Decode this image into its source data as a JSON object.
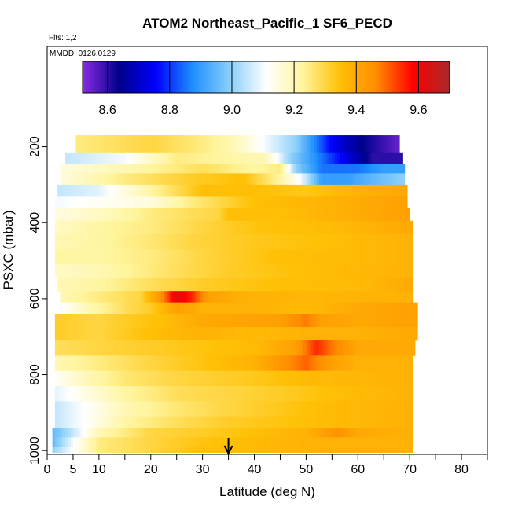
{
  "chart_data": {
    "type": "heatmap",
    "title": "ATOM2 Northeast_Pacific_1 SF6_PECD",
    "flights_label": "Flts: 1,2",
    "dates_label": "MMDD: 0126,0129",
    "xlabel": "Latitude (deg N)",
    "ylabel": "PSXC (mbar)",
    "xlim": [
      0,
      85
    ],
    "ylim": [
      1000,
      0
    ],
    "x_ticks": [
      0,
      5,
      10,
      15,
      20,
      25,
      30,
      35,
      40,
      45,
      50,
      55,
      60,
      65,
      70,
      75,
      80,
      85
    ],
    "x_tick_labels": [
      "0",
      "5",
      "10",
      "",
      "20",
      "",
      "30",
      "",
      "40",
      "",
      "50",
      "",
      "60",
      "",
      "70",
      "",
      "80",
      ""
    ],
    "y_ticks": [
      200,
      400,
      600,
      800,
      1000
    ],
    "y_tick_labels": [
      "200",
      "400",
      "600",
      "800",
      "1000"
    ],
    "colorbar": {
      "range": [
        8.52,
        9.7
      ],
      "ticks": [
        8.6,
        8.8,
        9.0,
        9.2,
        9.4,
        9.6
      ],
      "tick_labels": [
        "8.6",
        "8.8",
        "9.0",
        "9.2",
        "9.4",
        "9.6"
      ],
      "colors": [
        "#8a2be2",
        "#00008b",
        "#0000ff",
        "#1e90ff",
        "#87cefa",
        "#ffffff",
        "#fff59d",
        "#ffc107",
        "#ff8c00",
        "#ff0000",
        "#a52a2a"
      ]
    },
    "marker": {
      "type": "arrow",
      "latitude": 35,
      "label": "↓"
    },
    "rows": [
      {
        "p": [
          170,
          215
        ],
        "lat": [
          5.5,
          68
        ],
        "nodes": [
          [
            5.5,
            9.25
          ],
          [
            20,
            9.3
          ],
          [
            30,
            9.25
          ],
          [
            36,
            9.2
          ],
          [
            42,
            9.1
          ],
          [
            48,
            9.0
          ],
          [
            55,
            8.75
          ],
          [
            60,
            8.65
          ],
          [
            64,
            8.6
          ],
          [
            68,
            8.55
          ]
        ]
      },
      {
        "p": [
          215,
          245
        ],
        "lat": [
          3.5,
          68.5
        ],
        "nodes": [
          [
            3.5,
            9.05
          ],
          [
            15,
            9.1
          ],
          [
            25,
            9.25
          ],
          [
            35,
            9.22
          ],
          [
            42,
            9.2
          ],
          [
            47,
            9.0
          ],
          [
            53,
            8.85
          ],
          [
            59,
            8.7
          ],
          [
            63,
            8.6
          ],
          [
            68.5,
            8.6
          ]
        ]
      },
      {
        "p": [
          245,
          270
        ],
        "lat": [
          2.5,
          69
        ],
        "nodes": [
          [
            2.5,
            9.15
          ],
          [
            15,
            9.2
          ],
          [
            30,
            9.28
          ],
          [
            40,
            9.22
          ],
          [
            45,
            9.25
          ],
          [
            48,
            9.0
          ],
          [
            53,
            8.85
          ],
          [
            60,
            8.85
          ],
          [
            65,
            8.9
          ],
          [
            69,
            8.9
          ]
        ]
      },
      {
        "p": [
          270,
          300
        ],
        "lat": [
          2.5,
          69
        ],
        "nodes": [
          [
            2.5,
            9.15
          ],
          [
            15,
            9.25
          ],
          [
            28,
            9.32
          ],
          [
            38,
            9.35
          ],
          [
            45,
            9.22
          ],
          [
            49,
            9.1
          ],
          [
            53,
            8.9
          ],
          [
            58,
            8.9
          ],
          [
            63,
            8.95
          ],
          [
            69,
            9.0
          ]
        ]
      },
      {
        "p": [
          300,
          330
        ],
        "lat": [
          2,
          69.5
        ],
        "nodes": [
          [
            2,
            9.05
          ],
          [
            10,
            9.08
          ],
          [
            20,
            9.22
          ],
          [
            30,
            9.35
          ],
          [
            40,
            9.35
          ],
          [
            50,
            9.33
          ],
          [
            60,
            9.38
          ],
          [
            69.5,
            9.4
          ]
        ]
      },
      {
        "p": [
          330,
          360
        ],
        "lat": [
          1.5,
          69.5
        ],
        "nodes": [
          [
            1.5,
            9.1
          ],
          [
            10,
            9.12
          ],
          [
            20,
            9.15
          ],
          [
            28,
            9.25
          ],
          [
            34,
            9.3
          ],
          [
            40,
            9.35
          ],
          [
            55,
            9.38
          ],
          [
            69.5,
            9.42
          ]
        ]
      },
      {
        "p": [
          360,
          395
        ],
        "lat": [
          1.5,
          70
        ],
        "nodes": [
          [
            1.5,
            9.15
          ],
          [
            10,
            9.18
          ],
          [
            20,
            9.25
          ],
          [
            33,
            9.3
          ],
          [
            35,
            9.35
          ],
          [
            45,
            9.35
          ],
          [
            55,
            9.38
          ],
          [
            70,
            9.42
          ]
        ]
      },
      {
        "p": [
          395,
          430
        ],
        "lat": [
          1.5,
          70.5
        ],
        "nodes": [
          [
            1.5,
            9.18
          ],
          [
            10,
            9.22
          ],
          [
            20,
            9.25
          ],
          [
            30,
            9.3
          ],
          [
            40,
            9.34
          ],
          [
            55,
            9.36
          ],
          [
            70.5,
            9.4
          ]
        ]
      },
      {
        "p": [
          430,
          470
        ],
        "lat": [
          1.5,
          70.5
        ],
        "nodes": [
          [
            1.5,
            9.2
          ],
          [
            10,
            9.22
          ],
          [
            20,
            9.26
          ],
          [
            28,
            9.3
          ],
          [
            40,
            9.33
          ],
          [
            55,
            9.35
          ],
          [
            70.5,
            9.38
          ]
        ]
      },
      {
        "p": [
          470,
          510
        ],
        "lat": [
          1.5,
          70.5
        ],
        "nodes": [
          [
            1.5,
            9.22
          ],
          [
            10,
            9.22
          ],
          [
            20,
            9.25
          ],
          [
            30,
            9.3
          ],
          [
            45,
            9.35
          ],
          [
            60,
            9.36
          ],
          [
            70.5,
            9.38
          ]
        ]
      },
      {
        "p": [
          510,
          545
        ],
        "lat": [
          1.5,
          70.5
        ],
        "nodes": [
          [
            1.5,
            9.18
          ],
          [
            10,
            9.2
          ],
          [
            25,
            9.28
          ],
          [
            35,
            9.32
          ],
          [
            50,
            9.35
          ],
          [
            70.5,
            9.38
          ]
        ]
      },
      {
        "p": [
          545,
          580
        ],
        "lat": [
          2,
          70.5
        ],
        "nodes": [
          [
            2,
            9.2
          ],
          [
            10,
            9.22
          ],
          [
            20,
            9.28
          ],
          [
            30,
            9.32
          ],
          [
            45,
            9.35
          ],
          [
            60,
            9.36
          ],
          [
            70.5,
            9.4
          ]
        ]
      },
      {
        "p": [
          580,
          610
        ],
        "lat": [
          2.5,
          70.5
        ],
        "nodes": [
          [
            2.5,
            9.2
          ],
          [
            10,
            9.25
          ],
          [
            18,
            9.3
          ],
          [
            22,
            9.45
          ],
          [
            25,
            9.62
          ],
          [
            28,
            9.55
          ],
          [
            31,
            9.42
          ],
          [
            38,
            9.38
          ],
          [
            50,
            9.37
          ],
          [
            70.5,
            9.38
          ]
        ]
      },
      {
        "p": [
          610,
          640
        ],
        "lat": [
          2.5,
          71.5
        ],
        "nodes": [
          [
            2.5,
            9.1
          ],
          [
            8,
            9.2
          ],
          [
            15,
            9.28
          ],
          [
            20,
            9.32
          ],
          [
            25,
            9.42
          ],
          [
            30,
            9.38
          ],
          [
            40,
            9.38
          ],
          [
            50,
            9.36
          ],
          [
            60,
            9.4
          ],
          [
            71.5,
            9.42
          ]
        ]
      },
      {
        "p": [
          640,
          675
        ],
        "lat": [
          1.5,
          71.5
        ],
        "nodes": [
          [
            1.5,
            9.32
          ],
          [
            10,
            9.3
          ],
          [
            22,
            9.35
          ],
          [
            30,
            9.4
          ],
          [
            45,
            9.42
          ],
          [
            50,
            9.48
          ],
          [
            53,
            9.42
          ],
          [
            60,
            9.4
          ],
          [
            71.5,
            9.42
          ]
        ]
      },
      {
        "p": [
          675,
          710
        ],
        "lat": [
          1.5,
          71.5
        ],
        "nodes": [
          [
            1.5,
            9.32
          ],
          [
            10,
            9.3
          ],
          [
            20,
            9.35
          ],
          [
            30,
            9.38
          ],
          [
            40,
            9.36
          ],
          [
            50,
            9.38
          ],
          [
            60,
            9.38
          ],
          [
            71.5,
            9.4
          ]
        ]
      },
      {
        "p": [
          710,
          750
        ],
        "lat": [
          1.5,
          71
        ],
        "nodes": [
          [
            1.5,
            9.28
          ],
          [
            10,
            9.3
          ],
          [
            20,
            9.32
          ],
          [
            30,
            9.34
          ],
          [
            40,
            9.36
          ],
          [
            48,
            9.42
          ],
          [
            52,
            9.55
          ],
          [
            55,
            9.48
          ],
          [
            60,
            9.4
          ],
          [
            71,
            9.4
          ]
        ]
      },
      {
        "p": [
          750,
          790
        ],
        "lat": [
          1.5,
          70.5
        ],
        "nodes": [
          [
            1.5,
            9.2
          ],
          [
            10,
            9.25
          ],
          [
            20,
            9.3
          ],
          [
            30,
            9.34
          ],
          [
            40,
            9.38
          ],
          [
            50,
            9.5
          ],
          [
            55,
            9.42
          ],
          [
            60,
            9.38
          ],
          [
            70.5,
            9.38
          ]
        ]
      },
      {
        "p": [
          790,
          830
        ],
        "lat": [
          1.5,
          70.5
        ],
        "nodes": [
          [
            1.5,
            9.12
          ],
          [
            8,
            9.2
          ],
          [
            15,
            9.26
          ],
          [
            25,
            9.3
          ],
          [
            40,
            9.33
          ],
          [
            50,
            9.36
          ],
          [
            60,
            9.37
          ],
          [
            70.5,
            9.38
          ]
        ]
      },
      {
        "p": [
          830,
          870
        ],
        "lat": [
          1.5,
          70.5
        ],
        "nodes": [
          [
            1.5,
            9.08
          ],
          [
            8,
            9.15
          ],
          [
            15,
            9.22
          ],
          [
            25,
            9.28
          ],
          [
            35,
            9.3
          ],
          [
            45,
            9.32
          ],
          [
            55,
            9.35
          ],
          [
            70.5,
            9.38
          ]
        ]
      },
      {
        "p": [
          870,
          910
        ],
        "lat": [
          1.5,
          70.5
        ],
        "nodes": [
          [
            1.5,
            9.05
          ],
          [
            8,
            9.12
          ],
          [
            15,
            9.2
          ],
          [
            25,
            9.26
          ],
          [
            35,
            9.3
          ],
          [
            45,
            9.33
          ],
          [
            55,
            9.36
          ],
          [
            70.5,
            9.38
          ]
        ]
      },
      {
        "p": [
          910,
          940
        ],
        "lat": [
          1.5,
          70.5
        ],
        "nodes": [
          [
            1.5,
            9.05
          ],
          [
            8,
            9.12
          ],
          [
            15,
            9.22
          ],
          [
            25,
            9.28
          ],
          [
            35,
            9.32
          ],
          [
            45,
            9.34
          ],
          [
            55,
            9.36
          ],
          [
            70.5,
            9.38
          ]
        ]
      },
      {
        "p": [
          940,
          965
        ],
        "lat": [
          1,
          70.5
        ],
        "nodes": [
          [
            1,
            8.95
          ],
          [
            5,
            9.05
          ],
          [
            10,
            9.2
          ],
          [
            20,
            9.3
          ],
          [
            30,
            9.32
          ],
          [
            40,
            9.35
          ],
          [
            50,
            9.38
          ],
          [
            56,
            9.45
          ],
          [
            60,
            9.4
          ],
          [
            70.5,
            9.38
          ]
        ]
      },
      {
        "p": [
          965,
          990
        ],
        "lat": [
          1,
          70.5
        ],
        "nodes": [
          [
            1,
            8.95
          ],
          [
            5,
            9.1
          ],
          [
            10,
            9.25
          ],
          [
            20,
            9.3
          ],
          [
            30,
            9.34
          ],
          [
            40,
            9.36
          ],
          [
            50,
            9.38
          ],
          [
            60,
            9.38
          ],
          [
            70.5,
            9.38
          ]
        ]
      },
      {
        "p": [
          990,
          1005
        ],
        "lat": [
          1,
          70.5
        ],
        "nodes": [
          [
            1,
            9.0
          ],
          [
            10,
            9.25
          ],
          [
            20,
            9.3
          ],
          [
            30,
            9.35
          ],
          [
            40,
            9.36
          ],
          [
            55,
            9.38
          ],
          [
            70.5,
            9.38
          ]
        ]
      }
    ]
  }
}
